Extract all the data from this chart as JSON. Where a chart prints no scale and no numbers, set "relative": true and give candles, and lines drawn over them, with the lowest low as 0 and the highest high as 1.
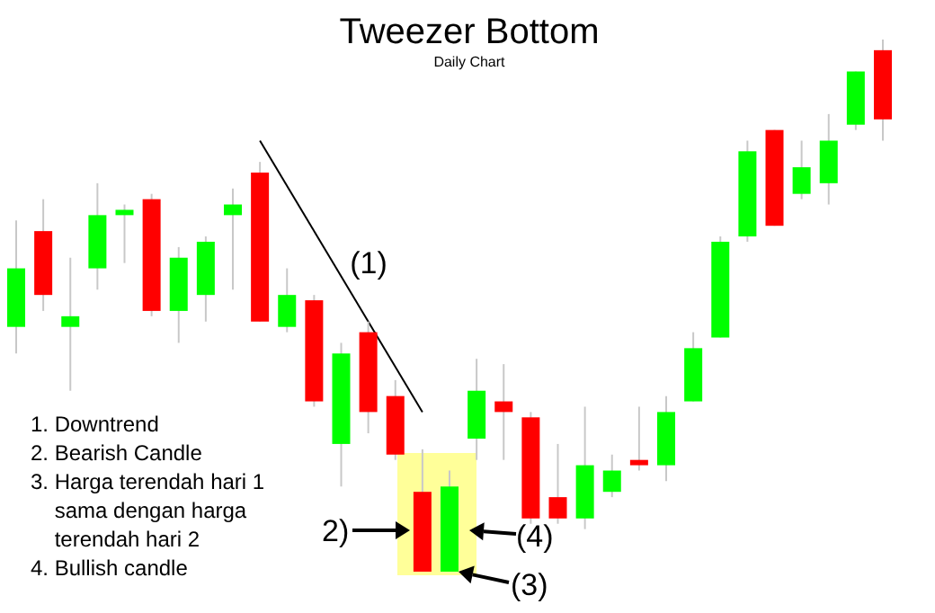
{
  "chart_data": {
    "type": "candlestick",
    "title": "Tweezer Bottom",
    "subtitle": "Daily Chart",
    "relative": true,
    "categories": [
      null,
      null,
      null,
      null,
      null,
      null,
      null,
      null,
      null,
      null,
      null,
      null,
      null,
      null,
      null,
      null,
      null,
      null,
      null,
      null,
      null,
      null,
      null,
      null,
      null,
      null,
      null,
      null,
      null,
      null,
      null,
      null,
      null
    ],
    "ohlc": [
      [
        0.46,
        0.66,
        0.41,
        0.57
      ],
      [
        0.64,
        0.7,
        0.49,
        0.52
      ],
      [
        0.46,
        0.59,
        0.34,
        0.48
      ],
      [
        0.57,
        0.73,
        0.53,
        0.67
      ],
      [
        0.67,
        0.69,
        0.58,
        0.68
      ],
      [
        0.7,
        0.71,
        0.48,
        0.49
      ],
      [
        0.49,
        0.61,
        0.43,
        0.59
      ],
      [
        0.52,
        0.63,
        0.47,
        0.62
      ],
      [
        0.67,
        0.72,
        0.53,
        0.69
      ],
      [
        0.75,
        0.77,
        0.47,
        0.47
      ],
      [
        0.46,
        0.57,
        0.45,
        0.52
      ],
      [
        0.51,
        0.52,
        0.31,
        0.32
      ],
      [
        0.24,
        0.43,
        0.16,
        0.41
      ],
      [
        0.45,
        0.47,
        0.26,
        0.3
      ],
      [
        0.33,
        0.36,
        0.21,
        0.22
      ],
      [
        0.15,
        0.23,
        0,
        0
      ],
      [
        0,
        0.19,
        0,
        0.16
      ],
      [
        0.25,
        0.4,
        0.21,
        0.34
      ],
      [
        0.32,
        0.39,
        0.21,
        0.3
      ],
      [
        0.29,
        0.3,
        0.09,
        0.1
      ],
      [
        0.14,
        0.24,
        0.09,
        0.1
      ],
      [
        0.1,
        0.31,
        0.08,
        0.2
      ],
      [
        0.15,
        0.22,
        0.14,
        0.19
      ],
      [
        0.21,
        0.31,
        0.19,
        0.2
      ],
      [
        0.2,
        0.33,
        0.17,
        0.3
      ],
      [
        0.32,
        0.45,
        0.32,
        0.42
      ],
      [
        0.44,
        0.63,
        0.44,
        0.62
      ],
      [
        0.63,
        0.81,
        0.62,
        0.79
      ],
      [
        0.83,
        0.83,
        0.65,
        0.65
      ],
      [
        0.71,
        0.81,
        0.7,
        0.76
      ],
      [
        0.73,
        0.86,
        0.69,
        0.81
      ],
      [
        0.84,
        0.94,
        0.83,
        0.94
      ],
      [
        0.98,
        1,
        0.81,
        0.85
      ]
    ],
    "colors": [
      "#00ff00",
      "#ff0000",
      "#00ff00",
      "#00ff00",
      "#00ff00",
      "#ff0000",
      "#00ff00",
      "#00ff00",
      "#00ff00",
      "#ff0000",
      "#00ff00",
      "#ff0000",
      "#00ff00",
      "#ff0000",
      "#ff0000",
      "#ff0000",
      "#00ff00",
      "#00ff00",
      "#ff0000",
      "#ff0000",
      "#ff0000",
      "#00ff00",
      "#00ff00",
      "#ff0000",
      "#00ff00",
      "#00ff00",
      "#00ff00",
      "#00ff00",
      "#ff0000",
      "#00ff00",
      "#00ff00",
      "#00ff00",
      "#ff0000"
    ],
    "series": [
      {
        "type": "line",
        "color": "#000000",
        "values": [
          null,
          null,
          null,
          null,
          null,
          null,
          null,
          null,
          null,
          0.81,
          null,
          null,
          null,
          null,
          null,
          0.3,
          null,
          null,
          null,
          null,
          null,
          null,
          null,
          null,
          null,
          null,
          null,
          null,
          null,
          null,
          null,
          null,
          null
        ]
      }
    ],
    "annotations": [
      "(1)",
      "2)",
      "(3)",
      "(4)",
      "1. Downtrend",
      "2. Bearish Candle",
      "3. Harga terendah hari 1\n    sama dengan harga\n    terendah hari 2",
      "4. Bullish candle"
    ]
  }
}
